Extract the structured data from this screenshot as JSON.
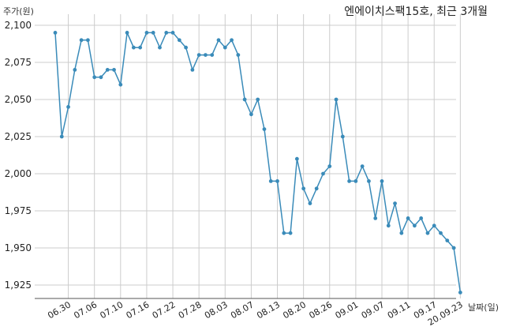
{
  "chart_data": {
    "type": "line",
    "title": "엔에이치스팩15호, 최근 3개월",
    "ylabel": "주가(원)",
    "xlabel": "날짜(일)",
    "ylim": [
      1910,
      2100
    ],
    "yticks": [
      1925,
      1950,
      1975,
      2000,
      2025,
      2050,
      2075,
      2100
    ],
    "ytick_labels": [
      "1,925",
      "1,950",
      "1,975",
      "2,000",
      "2,025",
      "2,050",
      "2,075",
      "2,100"
    ],
    "grid": true,
    "color": "#3a8bb9",
    "xtick_labels": [
      "06.30",
      "07.06",
      "07.10",
      "07.16",
      "07.22",
      "07.28",
      "08.03",
      "08.07",
      "08.13",
      "08.20",
      "08.26",
      "09.01",
      "09.07",
      "09.11",
      "09.17",
      "20.09.23"
    ],
    "xtick_index": [
      2,
      6,
      10,
      14,
      18,
      22,
      26,
      30,
      34,
      38,
      42,
      46,
      50,
      54,
      58,
      62
    ],
    "values": [
      2095,
      2025,
      2045,
      2070,
      2090,
      2090,
      2065,
      2065,
      2070,
      2070,
      2060,
      2095,
      2085,
      2085,
      2095,
      2095,
      2085,
      2095,
      2095,
      2090,
      2085,
      2070,
      2080,
      2080,
      2080,
      2090,
      2085,
      2090,
      2080,
      2050,
      2040,
      2050,
      2030,
      1995,
      1995,
      1960,
      1960,
      2010,
      1990,
      1980,
      1990,
      2000,
      2005,
      2050,
      2025,
      1995,
      1995,
      2005,
      1995,
      1970,
      1995,
      1965,
      1980,
      1960,
      1970,
      1965,
      1970,
      1960,
      1965,
      1960,
      1955,
      1950,
      1920
    ]
  }
}
